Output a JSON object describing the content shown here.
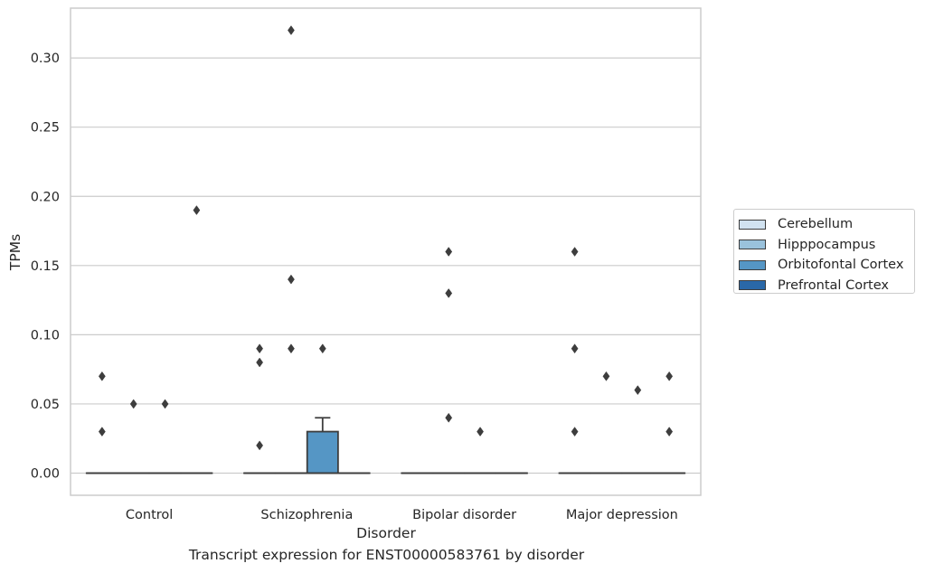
{
  "chart_data": {
    "type": "box",
    "title": "Transcript expression for ENST00000583761 by disorder",
    "xlabel": "Disorder",
    "ylabel": "TPMs",
    "ylim": [
      -0.016,
      0.336
    ],
    "yticks": [
      "0.00",
      "0.05",
      "0.10",
      "0.15",
      "0.20",
      "0.25",
      "0.30"
    ],
    "grid": true,
    "legend_position": "right",
    "categories": [
      "Control",
      "Schizophrenia",
      "Bipolar disorder",
      "Major depression"
    ],
    "series": [
      {
        "name": "Cerebellum",
        "color": "#d1e2f0",
        "boxes": [
          {
            "q1": 0,
            "median": 0,
            "q3": 0,
            "whisker_low": 0,
            "whisker_high": 0,
            "outliers": [
              0.07,
              0.03
            ]
          },
          {
            "q1": 0,
            "median": 0,
            "q3": 0,
            "whisker_low": 0,
            "whisker_high": 0,
            "outliers": [
              0.09,
              0.08,
              0.02
            ]
          },
          {
            "q1": 0,
            "median": 0,
            "q3": 0,
            "whisker_low": 0,
            "whisker_high": 0,
            "outliers": []
          },
          {
            "q1": 0,
            "median": 0,
            "q3": 0,
            "whisker_low": 0,
            "whisker_high": 0,
            "outliers": [
              0.16,
              0.09,
              0.03
            ]
          }
        ]
      },
      {
        "name": "Hipppocampus",
        "color": "#9ac2dc",
        "boxes": [
          {
            "q1": 0,
            "median": 0,
            "q3": 0,
            "whisker_low": 0,
            "whisker_high": 0,
            "outliers": [
              0.05
            ]
          },
          {
            "q1": 0,
            "median": 0,
            "q3": 0,
            "whisker_low": 0,
            "whisker_high": 0,
            "outliers": [
              0.32,
              0.14,
              0.09
            ]
          },
          {
            "q1": 0,
            "median": 0,
            "q3": 0,
            "whisker_low": 0,
            "whisker_high": 0,
            "outliers": [
              0.16,
              0.13,
              0.04
            ]
          },
          {
            "q1": 0,
            "median": 0,
            "q3": 0,
            "whisker_low": 0,
            "whisker_high": 0,
            "outliers": [
              0.07
            ]
          }
        ]
      },
      {
        "name": "Orbitofontal Cortex",
        "color": "#5596c5",
        "boxes": [
          {
            "q1": 0,
            "median": 0,
            "q3": 0,
            "whisker_low": 0,
            "whisker_high": 0,
            "outliers": [
              0.05
            ]
          },
          {
            "q1": 0,
            "median": 0,
            "q3": 0.03,
            "whisker_low": 0,
            "whisker_high": 0.04,
            "outliers": [
              0.09
            ]
          },
          {
            "q1": 0,
            "median": 0,
            "q3": 0,
            "whisker_low": 0,
            "whisker_high": 0,
            "outliers": [
              0.03
            ]
          },
          {
            "q1": 0,
            "median": 0,
            "q3": 0,
            "whisker_low": 0,
            "whisker_high": 0,
            "outliers": [
              0.06
            ]
          }
        ]
      },
      {
        "name": "Prefrontal Cortex",
        "color": "#2a68a8",
        "boxes": [
          {
            "q1": 0,
            "median": 0,
            "q3": 0,
            "whisker_low": 0,
            "whisker_high": 0,
            "outliers": [
              0.19
            ]
          },
          {
            "q1": 0,
            "median": 0,
            "q3": 0,
            "whisker_low": 0,
            "whisker_high": 0,
            "outliers": []
          },
          {
            "q1": 0,
            "median": 0,
            "q3": 0,
            "whisker_low": 0,
            "whisker_high": 0,
            "outliers": []
          },
          {
            "q1": 0,
            "median": 0,
            "q3": 0,
            "whisker_low": 0,
            "whisker_high": 0,
            "outliers": [
              0.07,
              0.03
            ]
          }
        ]
      }
    ]
  }
}
